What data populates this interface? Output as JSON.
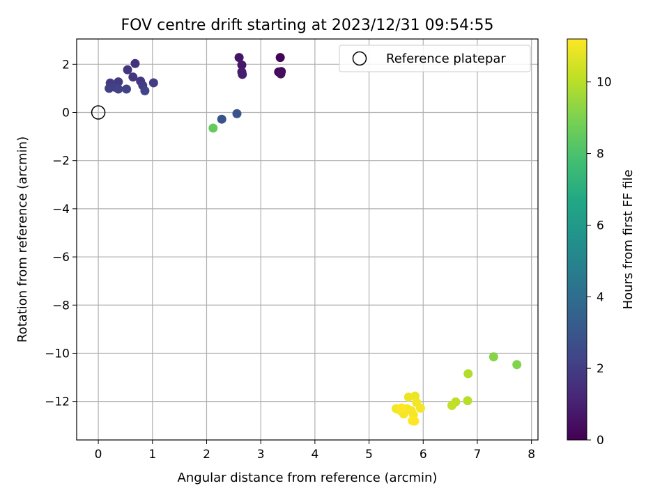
{
  "chart_data": {
    "type": "scatter",
    "title": "FOV centre drift starting at 2023/12/31 09:54:55",
    "xlabel": "Angular distance from reference (arcmin)",
    "ylabel": "Rotation from reference (arcmin)",
    "xlim": [
      -0.4,
      8.12
    ],
    "ylim": [
      -13.6,
      3.05
    ],
    "xticks": [
      0,
      1,
      2,
      3,
      4,
      5,
      6,
      7,
      8
    ],
    "yticks": [
      2,
      0,
      -2,
      -4,
      -6,
      -8,
      -10,
      -12
    ],
    "xtick_labels": [
      "0",
      "1",
      "2",
      "3",
      "4",
      "5",
      "6",
      "7",
      "8"
    ],
    "ytick_labels": [
      "2",
      "0",
      "−2",
      "−4",
      "−6",
      "−8",
      "−10",
      "−12"
    ],
    "grid": true,
    "legend": {
      "position": "top-right",
      "entries": [
        {
          "label": "Reference platepar",
          "marker": "open-circle"
        }
      ]
    },
    "reference_point": {
      "x": 0,
      "y": 0
    },
    "colorbar": {
      "label": "Hours from first FF file",
      "colormap": "viridis",
      "range": [
        0,
        11.2
      ],
      "ticks": [
        0,
        2,
        4,
        6,
        8,
        10
      ],
      "tick_labels": [
        "0",
        "2",
        "4",
        "6",
        "8",
        "10"
      ]
    },
    "points": [
      {
        "x": 3.36,
        "y": 2.28,
        "t": 0.1
      },
      {
        "x": 3.33,
        "y": 1.68,
        "t": 0.2
      },
      {
        "x": 3.38,
        "y": 1.7,
        "t": 0.3
      },
      {
        "x": 3.37,
        "y": 1.6,
        "t": 0.4
      },
      {
        "x": 2.6,
        "y": 2.28,
        "t": 0.6
      },
      {
        "x": 2.65,
        "y": 1.97,
        "t": 0.7
      },
      {
        "x": 2.65,
        "y": 1.68,
        "t": 0.8
      },
      {
        "x": 2.66,
        "y": 1.58,
        "t": 0.9
      },
      {
        "x": 0.68,
        "y": 2.03,
        "t": 1.6
      },
      {
        "x": 0.54,
        "y": 1.77,
        "t": 1.7
      },
      {
        "x": 0.64,
        "y": 1.47,
        "t": 1.8
      },
      {
        "x": 0.78,
        "y": 1.3,
        "t": 1.8
      },
      {
        "x": 0.22,
        "y": 1.22,
        "t": 1.9
      },
      {
        "x": 0.37,
        "y": 1.27,
        "t": 1.9
      },
      {
        "x": 1.02,
        "y": 1.23,
        "t": 2.0
      },
      {
        "x": 0.82,
        "y": 1.12,
        "t": 2.0
      },
      {
        "x": 0.2,
        "y": 1.0,
        "t": 2.1
      },
      {
        "x": 0.3,
        "y": 1.05,
        "t": 2.1
      },
      {
        "x": 0.37,
        "y": 0.97,
        "t": 2.2
      },
      {
        "x": 0.52,
        "y": 0.97,
        "t": 2.2
      },
      {
        "x": 0.86,
        "y": 0.9,
        "t": 2.3
      },
      {
        "x": 2.56,
        "y": -0.05,
        "t": 2.8
      },
      {
        "x": 2.28,
        "y": -0.28,
        "t": 2.9
      },
      {
        "x": 2.12,
        "y": -0.65,
        "t": 8.5
      },
      {
        "x": 7.73,
        "y": -10.47,
        "t": 9.1
      },
      {
        "x": 7.3,
        "y": -10.15,
        "t": 9.2
      },
      {
        "x": 6.83,
        "y": -10.85,
        "t": 9.9
      },
      {
        "x": 6.82,
        "y": -11.97,
        "t": 10.0
      },
      {
        "x": 6.6,
        "y": -12.02,
        "t": 10.1
      },
      {
        "x": 6.53,
        "y": -12.17,
        "t": 10.2
      },
      {
        "x": 5.73,
        "y": -11.82,
        "t": 10.9
      },
      {
        "x": 5.85,
        "y": -11.78,
        "t": 10.9
      },
      {
        "x": 5.88,
        "y": -12.05,
        "t": 11.0
      },
      {
        "x": 5.95,
        "y": -12.28,
        "t": 11.0
      },
      {
        "x": 5.5,
        "y": -12.3,
        "t": 11.0
      },
      {
        "x": 5.58,
        "y": -12.38,
        "t": 11.1
      },
      {
        "x": 5.64,
        "y": -12.52,
        "t": 11.1
      },
      {
        "x": 5.7,
        "y": -12.3,
        "t": 11.1
      },
      {
        "x": 5.78,
        "y": -12.38,
        "t": 11.1
      },
      {
        "x": 5.82,
        "y": -12.55,
        "t": 11.1
      },
      {
        "x": 5.6,
        "y": -12.27,
        "t": 11.2
      },
      {
        "x": 5.8,
        "y": -12.8,
        "t": 11.2
      },
      {
        "x": 5.84,
        "y": -12.82,
        "t": 11.2
      }
    ]
  }
}
